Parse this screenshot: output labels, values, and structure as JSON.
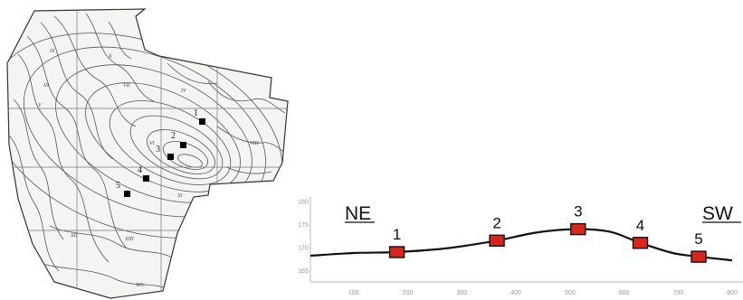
{
  "map": {
    "sample_points": [
      {
        "label": "1"
      },
      {
        "label": "2"
      },
      {
        "label": "3"
      },
      {
        "label": "4"
      },
      {
        "label": "5"
      }
    ],
    "zone_labels": [
      "III",
      "IV",
      "V",
      "VI",
      "VII",
      "VIII",
      "IX",
      "X",
      "XI",
      "XII",
      "XIII",
      "XIV"
    ]
  },
  "profile": {
    "left_label": "NE",
    "right_label": "SW",
    "points": [
      {
        "label": "1",
        "x": 180,
        "y": 169.0
      },
      {
        "label": "2",
        "x": 365,
        "y": 171.5
      },
      {
        "label": "3",
        "x": 515,
        "y": 174.0
      },
      {
        "label": "4",
        "x": 630,
        "y": 171.0
      },
      {
        "label": "5",
        "x": 738,
        "y": 168.0
      }
    ],
    "curve": [
      [
        20,
        168.2
      ],
      [
        100,
        168.8
      ],
      [
        180,
        169.0
      ],
      [
        270,
        169.8
      ],
      [
        365,
        171.5
      ],
      [
        440,
        173.3
      ],
      [
        515,
        174.0
      ],
      [
        575,
        173.4
      ],
      [
        630,
        171.0
      ],
      [
        690,
        168.8
      ],
      [
        738,
        168.0
      ],
      [
        800,
        167.2
      ]
    ],
    "y_ticks": [
      "180",
      "175",
      "170",
      "165"
    ],
    "y_tick_values": [
      180,
      175,
      170,
      165
    ],
    "x_ticks": [
      "100",
      "200",
      "300",
      "400",
      "500",
      "600",
      "700",
      "800"
    ],
    "x_tick_values": [
      100,
      200,
      300,
      400,
      500,
      600,
      700,
      800
    ],
    "x_range": [
      20,
      820
    ],
    "y_range": [
      162.5,
      181
    ],
    "marker_color": "#d9261c",
    "line_color": "#111111"
  }
}
